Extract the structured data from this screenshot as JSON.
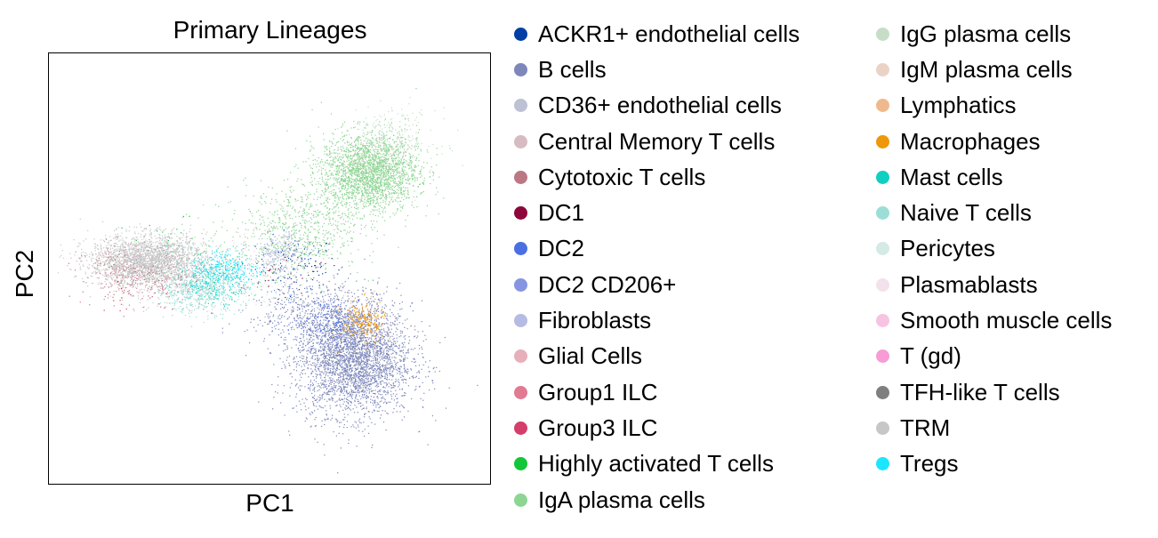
{
  "chart_data": {
    "type": "scatter",
    "title": "Primary Lineages",
    "xlabel": "PC1",
    "ylabel": "PC2",
    "xticks": false,
    "yticks": false,
    "grid": false,
    "legend_position": "right",
    "xlim": [
      -1.0,
      1.0
    ],
    "ylim": [
      -1.0,
      1.0
    ],
    "series": [
      {
        "name": "ACKR1+ endothelial cells",
        "color": "#023fa5",
        "clusters": [
          {
            "cx": 0.12,
            "cy": 0.03,
            "sx": 0.09,
            "sy": 0.06,
            "n": 120
          }
        ]
      },
      {
        "name": "B cells",
        "color": "#7d87b9",
        "clusters": [
          {
            "cx": 0.38,
            "cy": -0.42,
            "sx": 0.13,
            "sy": 0.13,
            "n": 3200
          },
          {
            "cx": 0.2,
            "cy": -0.2,
            "sx": 0.15,
            "sy": 0.08,
            "n": 500
          }
        ]
      },
      {
        "name": "CD36+ endothelial cells",
        "color": "#bec1d4",
        "clusters": [
          {
            "cx": 0.06,
            "cy": 0.08,
            "sx": 0.05,
            "sy": 0.05,
            "n": 150
          }
        ]
      },
      {
        "name": "Central Memory T cells",
        "color": "#d6bcc0",
        "clusters": [
          {
            "cx": -0.5,
            "cy": -0.05,
            "sx": 0.15,
            "sy": 0.07,
            "n": 150
          }
        ]
      },
      {
        "name": "Cytotoxic T cells",
        "color": "#bb7784",
        "clusters": [
          {
            "cx": -0.62,
            "cy": -0.02,
            "sx": 0.12,
            "sy": 0.06,
            "n": 200
          }
        ]
      },
      {
        "name": "DC1",
        "color": "#8e063b",
        "clusters": [
          {
            "cx": 0.08,
            "cy": -0.05,
            "sx": 0.12,
            "sy": 0.08,
            "n": 30
          }
        ]
      },
      {
        "name": "DC2",
        "color": "#4a6fe3",
        "clusters": [
          {
            "cx": 0.28,
            "cy": -0.25,
            "sx": 0.09,
            "sy": 0.06,
            "n": 200
          }
        ]
      },
      {
        "name": "DC2 CD206+",
        "color": "#8595e1",
        "clusters": [
          {
            "cx": 0.3,
            "cy": -0.3,
            "sx": 0.1,
            "sy": 0.06,
            "n": 100
          }
        ]
      },
      {
        "name": "Fibroblasts",
        "color": "#b5bbe3",
        "clusters": [
          {
            "cx": 0.02,
            "cy": 0.07,
            "sx": 0.05,
            "sy": 0.05,
            "n": 120
          }
        ]
      },
      {
        "name": "Glial Cells",
        "color": "#e6afb9",
        "clusters": [
          {
            "cx": -0.72,
            "cy": 0.02,
            "sx": 0.06,
            "sy": 0.04,
            "n": 40
          }
        ]
      },
      {
        "name": "Group1 ILC",
        "color": "#e07b91",
        "clusters": [
          {
            "cx": -0.6,
            "cy": -0.05,
            "sx": 0.12,
            "sy": 0.06,
            "n": 80
          }
        ]
      },
      {
        "name": "Group3 ILC",
        "color": "#d33f6a",
        "clusters": [
          {
            "cx": -0.55,
            "cy": -0.08,
            "sx": 0.12,
            "sy": 0.06,
            "n": 60
          }
        ]
      },
      {
        "name": "Highly activated T cells",
        "color": "#11c638",
        "clusters": [
          {
            "cx": -0.4,
            "cy": 0.1,
            "sx": 0.12,
            "sy": 0.06,
            "n": 25
          }
        ]
      },
      {
        "name": "IgA plasma cells",
        "color": "#8dd593",
        "clusters": [
          {
            "cx": 0.45,
            "cy": 0.45,
            "sx": 0.11,
            "sy": 0.09,
            "n": 2400
          },
          {
            "cx": 0.15,
            "cy": 0.2,
            "sx": 0.13,
            "sy": 0.1,
            "n": 600
          },
          {
            "cx": -0.1,
            "cy": 0.05,
            "sx": 0.22,
            "sy": 0.1,
            "n": 200
          }
        ]
      },
      {
        "name": "IgG plasma cells",
        "color": "#c6dec7",
        "clusters": [
          {
            "cx": 0.55,
            "cy": 0.6,
            "sx": 0.1,
            "sy": 0.07,
            "n": 250
          }
        ]
      },
      {
        "name": "IgM plasma cells",
        "color": "#ead3c6",
        "clusters": [
          {
            "cx": 0.45,
            "cy": 0.5,
            "sx": 0.08,
            "sy": 0.06,
            "n": 60
          }
        ]
      },
      {
        "name": "Lymphatics",
        "color": "#f0b98d",
        "clusters": [
          {
            "cx": 0.42,
            "cy": -0.22,
            "sx": 0.05,
            "sy": 0.05,
            "n": 40
          }
        ]
      },
      {
        "name": "Macrophages",
        "color": "#ef9708",
        "clusters": [
          {
            "cx": 0.42,
            "cy": -0.25,
            "sx": 0.05,
            "sy": 0.05,
            "n": 220
          }
        ]
      },
      {
        "name": "Mast cells",
        "color": "#0fcfc0",
        "clusters": [
          {
            "cx": -0.25,
            "cy": -0.05,
            "sx": 0.08,
            "sy": 0.05,
            "n": 250
          }
        ]
      },
      {
        "name": "Naive T cells",
        "color": "#9cded6",
        "clusters": [
          {
            "cx": -0.32,
            "cy": -0.1,
            "sx": 0.1,
            "sy": 0.05,
            "n": 600
          }
        ]
      },
      {
        "name": "Pericytes",
        "color": "#d5eae7",
        "clusters": [
          {
            "cx": -0.05,
            "cy": -0.05,
            "sx": 0.1,
            "sy": 0.06,
            "n": 60
          }
        ]
      },
      {
        "name": "Plasmablasts",
        "color": "#f3e1eb",
        "clusters": [
          {
            "cx": -0.05,
            "cy": 0.0,
            "sx": 0.1,
            "sy": 0.06,
            "n": 40
          }
        ]
      },
      {
        "name": "Smooth muscle cells",
        "color": "#f6c4e1",
        "clusters": [
          {
            "cx": -0.1,
            "cy": 0.05,
            "sx": 0.08,
            "sy": 0.05,
            "n": 30
          }
        ]
      },
      {
        "name": "T (gd)",
        "color": "#f79cd4",
        "clusters": [
          {
            "cx": -0.6,
            "cy": 0.0,
            "sx": 0.08,
            "sy": 0.05,
            "n": 20
          }
        ]
      },
      {
        "name": "TFH-like T cells",
        "color": "#7f7f7f",
        "clusters": [
          {
            "cx": -0.55,
            "cy": 0.02,
            "sx": 0.1,
            "sy": 0.05,
            "n": 100
          }
        ]
      },
      {
        "name": "TRM",
        "color": "#c7c7c7",
        "clusters": [
          {
            "cx": -0.55,
            "cy": 0.04,
            "sx": 0.13,
            "sy": 0.06,
            "n": 2200
          }
        ]
      },
      {
        "name": "Tregs",
        "color": "#1ce6ff",
        "clusters": [
          {
            "cx": -0.2,
            "cy": 0.0,
            "sx": 0.08,
            "sy": 0.05,
            "n": 250
          }
        ]
      }
    ]
  }
}
